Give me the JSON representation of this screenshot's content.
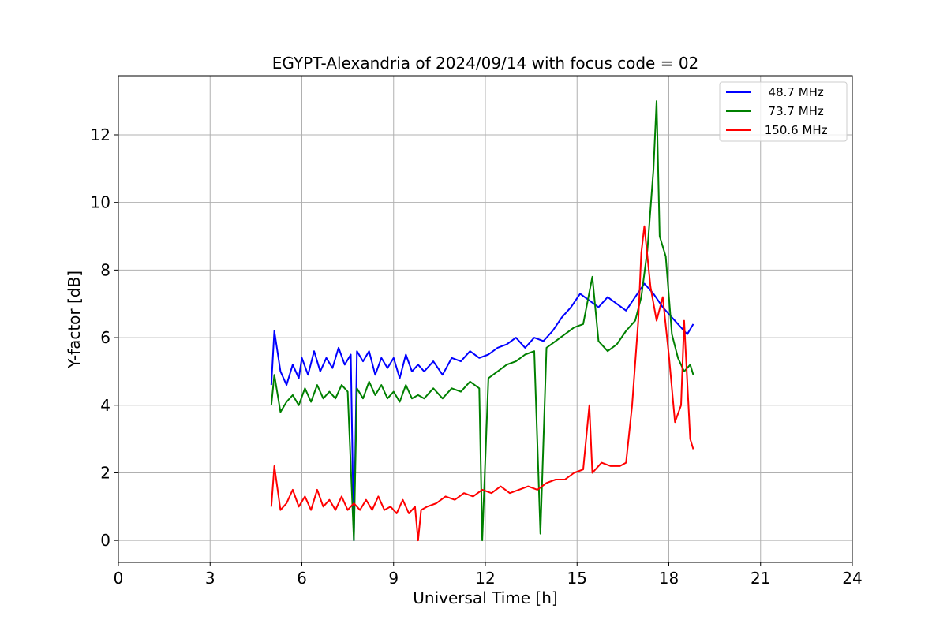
{
  "chart_data": {
    "type": "line",
    "title": "EGYPT-Alexandria of 2024/09/14 with focus code = 02",
    "xlabel": "Universal Time [h]",
    "ylabel": "Y-factor [dB]",
    "xlim": [
      0,
      24
    ],
    "ylim": [
      -0.65,
      13.75
    ],
    "xticks": [
      0,
      3,
      6,
      9,
      12,
      15,
      18,
      21,
      24
    ],
    "yticks": [
      0,
      2,
      4,
      6,
      8,
      10,
      12
    ],
    "grid": true,
    "legend_position": "top-right",
    "series": [
      {
        "name": "  48.7 MHz",
        "color": "#0000ff",
        "points": [
          [
            5.0,
            4.6
          ],
          [
            5.1,
            6.2
          ],
          [
            5.3,
            5.0
          ],
          [
            5.5,
            4.6
          ],
          [
            5.7,
            5.2
          ],
          [
            5.9,
            4.8
          ],
          [
            6.0,
            5.4
          ],
          [
            6.2,
            4.9
          ],
          [
            6.4,
            5.6
          ],
          [
            6.6,
            5.0
          ],
          [
            6.8,
            5.4
          ],
          [
            7.0,
            5.1
          ],
          [
            7.2,
            5.7
          ],
          [
            7.4,
            5.2
          ],
          [
            7.6,
            5.5
          ],
          [
            7.7,
            0.0
          ],
          [
            7.8,
            5.6
          ],
          [
            8.0,
            5.3
          ],
          [
            8.2,
            5.6
          ],
          [
            8.4,
            4.9
          ],
          [
            8.6,
            5.4
          ],
          [
            8.8,
            5.1
          ],
          [
            9.0,
            5.4
          ],
          [
            9.2,
            4.8
          ],
          [
            9.4,
            5.5
          ],
          [
            9.6,
            5.0
          ],
          [
            9.8,
            5.2
          ],
          [
            10.0,
            5.0
          ],
          [
            10.3,
            5.3
          ],
          [
            10.6,
            4.9
          ],
          [
            10.9,
            5.4
          ],
          [
            11.2,
            5.3
          ],
          [
            11.5,
            5.6
          ],
          [
            11.8,
            5.4
          ],
          [
            12.1,
            5.5
          ],
          [
            12.4,
            5.7
          ],
          [
            12.7,
            5.8
          ],
          [
            13.0,
            6.0
          ],
          [
            13.3,
            5.7
          ],
          [
            13.6,
            6.0
          ],
          [
            13.9,
            5.9
          ],
          [
            14.2,
            6.2
          ],
          [
            14.5,
            6.6
          ],
          [
            14.8,
            6.9
          ],
          [
            15.1,
            7.3
          ],
          [
            15.4,
            7.1
          ],
          [
            15.7,
            6.9
          ],
          [
            16.0,
            7.2
          ],
          [
            16.3,
            7.0
          ],
          [
            16.6,
            6.8
          ],
          [
            16.9,
            7.2
          ],
          [
            17.2,
            7.6
          ],
          [
            17.5,
            7.3
          ],
          [
            17.8,
            6.9
          ],
          [
            18.1,
            6.6
          ],
          [
            18.4,
            6.3
          ],
          [
            18.6,
            6.1
          ],
          [
            18.8,
            6.4
          ]
        ]
      },
      {
        "name": "  73.7 MHz",
        "color": "#008000",
        "points": [
          [
            5.0,
            4.0
          ],
          [
            5.1,
            4.9
          ],
          [
            5.3,
            3.8
          ],
          [
            5.5,
            4.1
          ],
          [
            5.7,
            4.3
          ],
          [
            5.9,
            4.0
          ],
          [
            6.1,
            4.5
          ],
          [
            6.3,
            4.1
          ],
          [
            6.5,
            4.6
          ],
          [
            6.7,
            4.2
          ],
          [
            6.9,
            4.4
          ],
          [
            7.1,
            4.2
          ],
          [
            7.3,
            4.6
          ],
          [
            7.5,
            4.4
          ],
          [
            7.7,
            0.0
          ],
          [
            7.8,
            4.5
          ],
          [
            8.0,
            4.2
          ],
          [
            8.2,
            4.7
          ],
          [
            8.4,
            4.3
          ],
          [
            8.6,
            4.6
          ],
          [
            8.8,
            4.2
          ],
          [
            9.0,
            4.4
          ],
          [
            9.2,
            4.1
          ],
          [
            9.4,
            4.6
          ],
          [
            9.6,
            4.2
          ],
          [
            9.8,
            4.3
          ],
          [
            10.0,
            4.2
          ],
          [
            10.3,
            4.5
          ],
          [
            10.6,
            4.2
          ],
          [
            10.9,
            4.5
          ],
          [
            11.2,
            4.4
          ],
          [
            11.5,
            4.7
          ],
          [
            11.8,
            4.5
          ],
          [
            11.9,
            0.0
          ],
          [
            12.1,
            4.8
          ],
          [
            12.4,
            5.0
          ],
          [
            12.7,
            5.2
          ],
          [
            13.0,
            5.3
          ],
          [
            13.3,
            5.5
          ],
          [
            13.6,
            5.6
          ],
          [
            13.8,
            0.2
          ],
          [
            14.0,
            5.7
          ],
          [
            14.3,
            5.9
          ],
          [
            14.6,
            6.1
          ],
          [
            14.9,
            6.3
          ],
          [
            15.2,
            6.4
          ],
          [
            15.5,
            7.8
          ],
          [
            15.7,
            5.9
          ],
          [
            16.0,
            5.6
          ],
          [
            16.3,
            5.8
          ],
          [
            16.6,
            6.2
          ],
          [
            16.9,
            6.5
          ],
          [
            17.1,
            7.2
          ],
          [
            17.3,
            8.6
          ],
          [
            17.5,
            11.0
          ],
          [
            17.6,
            13.0
          ],
          [
            17.7,
            9.0
          ],
          [
            17.9,
            8.4
          ],
          [
            18.1,
            6.1
          ],
          [
            18.3,
            5.4
          ],
          [
            18.5,
            5.0
          ],
          [
            18.7,
            5.2
          ],
          [
            18.8,
            4.9
          ]
        ]
      },
      {
        "name": " 150.6 MHz",
        "color": "#ff0000",
        "points": [
          [
            5.0,
            1.0
          ],
          [
            5.1,
            2.2
          ],
          [
            5.3,
            0.9
          ],
          [
            5.5,
            1.1
          ],
          [
            5.7,
            1.5
          ],
          [
            5.9,
            1.0
          ],
          [
            6.1,
            1.3
          ],
          [
            6.3,
            0.9
          ],
          [
            6.5,
            1.5
          ],
          [
            6.7,
            1.0
          ],
          [
            6.9,
            1.2
          ],
          [
            7.1,
            0.9
          ],
          [
            7.3,
            1.3
          ],
          [
            7.5,
            0.9
          ],
          [
            7.7,
            1.1
          ],
          [
            7.9,
            0.9
          ],
          [
            8.1,
            1.2
          ],
          [
            8.3,
            0.9
          ],
          [
            8.5,
            1.3
          ],
          [
            8.7,
            0.9
          ],
          [
            8.9,
            1.0
          ],
          [
            9.1,
            0.8
          ],
          [
            9.3,
            1.2
          ],
          [
            9.5,
            0.8
          ],
          [
            9.7,
            1.0
          ],
          [
            9.8,
            0.0
          ],
          [
            9.9,
            0.9
          ],
          [
            10.1,
            1.0
          ],
          [
            10.4,
            1.1
          ],
          [
            10.7,
            1.3
          ],
          [
            11.0,
            1.2
          ],
          [
            11.3,
            1.4
          ],
          [
            11.6,
            1.3
          ],
          [
            11.9,
            1.5
          ],
          [
            12.2,
            1.4
          ],
          [
            12.5,
            1.6
          ],
          [
            12.8,
            1.4
          ],
          [
            13.1,
            1.5
          ],
          [
            13.4,
            1.6
          ],
          [
            13.7,
            1.5
          ],
          [
            14.0,
            1.7
          ],
          [
            14.3,
            1.8
          ],
          [
            14.6,
            1.8
          ],
          [
            14.9,
            2.0
          ],
          [
            15.2,
            2.1
          ],
          [
            15.4,
            4.0
          ],
          [
            15.5,
            2.0
          ],
          [
            15.8,
            2.3
          ],
          [
            16.1,
            2.2
          ],
          [
            16.4,
            2.2
          ],
          [
            16.6,
            2.3
          ],
          [
            16.8,
            4.0
          ],
          [
            17.0,
            6.5
          ],
          [
            17.1,
            8.5
          ],
          [
            17.2,
            9.3
          ],
          [
            17.4,
            7.5
          ],
          [
            17.6,
            6.5
          ],
          [
            17.8,
            7.2
          ],
          [
            18.0,
            5.5
          ],
          [
            18.2,
            3.5
          ],
          [
            18.4,
            4.0
          ],
          [
            18.5,
            6.5
          ],
          [
            18.7,
            3.0
          ],
          [
            18.8,
            2.7
          ]
        ]
      }
    ]
  }
}
